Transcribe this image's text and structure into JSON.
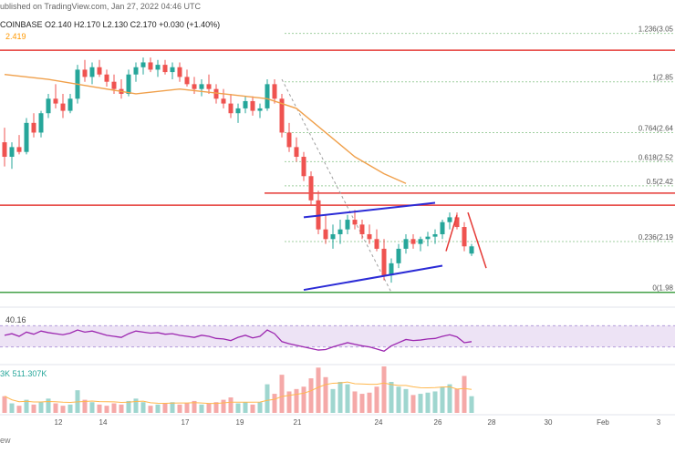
{
  "header": {
    "published": "ublished on TradingView.com, Jan 27, 2022 04:46 UTC",
    "ohlc": "COINBASE  O2.140  H2.170  L2.130  C2.170  +0.030 (+1.40%)",
    "ma_value": "2.419",
    "rsi_value": "40.16",
    "volume_value": "3K  511.307K",
    "footer": "ew"
  },
  "colors": {
    "up": "#26a69a",
    "down": "#ef5350",
    "ma": "#f0a04b",
    "rsi": "#9c27b0",
    "channel": "#2b2bd6",
    "resistance": "#e53935",
    "support": "#43a047",
    "fib": "#9fcf9f"
  },
  "chart_data": {
    "type": "candlestick",
    "x_labels": [
      "12",
      "14",
      "17",
      "19",
      "21",
      "24",
      "26",
      "28",
      "30",
      "Feb",
      "3"
    ],
    "ylim": [
      1.93,
      3.12
    ],
    "candles": [
      [
        2.6,
        2.66,
        2.5,
        2.54
      ],
      [
        2.54,
        2.6,
        2.49,
        2.58
      ],
      [
        2.58,
        2.63,
        2.55,
        2.56
      ],
      [
        2.56,
        2.7,
        2.55,
        2.68
      ],
      [
        2.68,
        2.72,
        2.62,
        2.64
      ],
      [
        2.64,
        2.73,
        2.62,
        2.72
      ],
      [
        2.72,
        2.8,
        2.7,
        2.78
      ],
      [
        2.78,
        2.84,
        2.74,
        2.76
      ],
      [
        2.76,
        2.8,
        2.7,
        2.73
      ],
      [
        2.73,
        2.8,
        2.72,
        2.78
      ],
      [
        2.78,
        2.92,
        2.76,
        2.9
      ],
      [
        2.9,
        2.94,
        2.85,
        2.87
      ],
      [
        2.87,
        2.93,
        2.84,
        2.91
      ],
      [
        2.91,
        2.94,
        2.87,
        2.88
      ],
      [
        2.88,
        2.9,
        2.83,
        2.85
      ],
      [
        2.85,
        2.88,
        2.8,
        2.82
      ],
      [
        2.82,
        2.86,
        2.78,
        2.8
      ],
      [
        2.8,
        2.9,
        2.79,
        2.88
      ],
      [
        2.88,
        2.93,
        2.85,
        2.91
      ],
      [
        2.91,
        2.95,
        2.88,
        2.93
      ],
      [
        2.93,
        2.95,
        2.89,
        2.9
      ],
      [
        2.9,
        2.94,
        2.87,
        2.92
      ],
      [
        2.92,
        2.94,
        2.88,
        2.89
      ],
      [
        2.89,
        2.93,
        2.86,
        2.91
      ],
      [
        2.91,
        2.93,
        2.85,
        2.87
      ],
      [
        2.87,
        2.9,
        2.83,
        2.84
      ],
      [
        2.84,
        2.87,
        2.8,
        2.82
      ],
      [
        2.82,
        2.86,
        2.79,
        2.84
      ],
      [
        2.84,
        2.88,
        2.8,
        2.82
      ],
      [
        2.82,
        2.84,
        2.76,
        2.78
      ],
      [
        2.78,
        2.82,
        2.74,
        2.76
      ],
      [
        2.76,
        2.8,
        2.7,
        2.72
      ],
      [
        2.72,
        2.76,
        2.68,
        2.74
      ],
      [
        2.74,
        2.79,
        2.72,
        2.77
      ],
      [
        2.77,
        2.79,
        2.71,
        2.73
      ],
      [
        2.73,
        2.76,
        2.7,
        2.74
      ],
      [
        2.74,
        2.86,
        2.73,
        2.84
      ],
      [
        2.84,
        2.86,
        2.76,
        2.78
      ],
      [
        2.78,
        2.8,
        2.62,
        2.64
      ],
      [
        2.64,
        2.68,
        2.56,
        2.58
      ],
      [
        2.58,
        2.62,
        2.52,
        2.54
      ],
      [
        2.54,
        2.56,
        2.44,
        2.46
      ],
      [
        2.46,
        2.48,
        2.34,
        2.36
      ],
      [
        2.36,
        2.4,
        2.22,
        2.24
      ],
      [
        2.24,
        2.3,
        2.18,
        2.2
      ],
      [
        2.2,
        2.26,
        2.16,
        2.22
      ],
      [
        2.22,
        2.28,
        2.18,
        2.24
      ],
      [
        2.24,
        2.3,
        2.22,
        2.28
      ],
      [
        2.28,
        2.32,
        2.24,
        2.26
      ],
      [
        2.26,
        2.28,
        2.2,
        2.22
      ],
      [
        2.22,
        2.26,
        2.18,
        2.2
      ],
      [
        2.2,
        2.24,
        2.15,
        2.16
      ],
      [
        2.16,
        2.2,
        2.03,
        2.05
      ],
      [
        2.05,
        2.12,
        2.02,
        2.1
      ],
      [
        2.1,
        2.18,
        2.08,
        2.16
      ],
      [
        2.16,
        2.22,
        2.14,
        2.2
      ],
      [
        2.2,
        2.22,
        2.16,
        2.18
      ],
      [
        2.18,
        2.21,
        2.15,
        2.2
      ],
      [
        2.2,
        2.23,
        2.17,
        2.21
      ],
      [
        2.21,
        2.24,
        2.18,
        2.22
      ],
      [
        2.22,
        2.28,
        2.2,
        2.27
      ],
      [
        2.27,
        2.31,
        2.24,
        2.29
      ],
      [
        2.29,
        2.31,
        2.24,
        2.25
      ],
      [
        2.25,
        2.27,
        2.15,
        2.17
      ],
      [
        2.14,
        2.18,
        2.13,
        2.17
      ]
    ],
    "moving_average": [
      [
        0,
        2.88
      ],
      [
        6,
        2.86
      ],
      [
        12,
        2.83
      ],
      [
        18,
        2.8
      ],
      [
        24,
        2.82
      ],
      [
        30,
        2.8
      ],
      [
        36,
        2.78
      ],
      [
        40,
        2.74
      ],
      [
        44,
        2.64
      ],
      [
        48,
        2.54
      ],
      [
        52,
        2.47
      ],
      [
        55,
        2.43
      ]
    ],
    "fib_levels": [
      {
        "label": "1.236(3.05",
        "value": 3.05
      },
      {
        "label": "1(2.85",
        "value": 2.85
      },
      {
        "label": "0.764(2.64",
        "value": 2.64
      },
      {
        "label": "0.618(2.52",
        "value": 2.52
      },
      {
        "label": "0.5(2.42",
        "value": 2.42
      },
      {
        "label": "0.236(2.19",
        "value": 2.19
      },
      {
        "label": "0(1.98",
        "value": 1.98
      }
    ],
    "horizontal_lines": [
      {
        "role": "resistance",
        "value": 2.98
      },
      {
        "role": "resistance",
        "value": 2.39
      },
      {
        "role": "resistance",
        "value": 2.34
      },
      {
        "role": "support",
        "value": 1.98
      }
    ],
    "channel": {
      "upper": [
        [
          41,
          2.29
        ],
        [
          59,
          2.35
        ]
      ],
      "lower": [
        [
          41,
          1.99
        ],
        [
          60,
          2.09
        ]
      ]
    },
    "projection": [
      [
        60.5,
        2.15
      ],
      [
        62,
        2.3
      ],
      [
        63.5,
        2.31
      ],
      [
        66,
        2.08
      ]
    ],
    "rsi": [
      52,
      55,
      50,
      58,
      54,
      60,
      57,
      55,
      53,
      56,
      62,
      58,
      60,
      56,
      52,
      50,
      48,
      55,
      60,
      58,
      56,
      57,
      54,
      55,
      52,
      50,
      48,
      52,
      50,
      46,
      45,
      42,
      48,
      52,
      47,
      50,
      62,
      55,
      40,
      36,
      33,
      30,
      27,
      24,
      25,
      30,
      34,
      38,
      35,
      32,
      30,
      26,
      22,
      32,
      38,
      44,
      42,
      43,
      45,
      46,
      50,
      53,
      49,
      38,
      40
    ],
    "rsi_levels": [
      70,
      30
    ],
    "volume": [
      140,
      80,
      60,
      110,
      70,
      90,
      120,
      80,
      60,
      70,
      190,
      110,
      90,
      70,
      60,
      80,
      70,
      100,
      120,
      90,
      60,
      70,
      80,
      90,
      70,
      80,
      100,
      70,
      80,
      90,
      110,
      130,
      80,
      90,
      70,
      90,
      240,
      160,
      320,
      180,
      200,
      220,
      290,
      380,
      300,
      200,
      260,
      240,
      180,
      160,
      170,
      220,
      390,
      260,
      220,
      200,
      150,
      160,
      170,
      180,
      220,
      240,
      200,
      310,
      140
    ]
  }
}
